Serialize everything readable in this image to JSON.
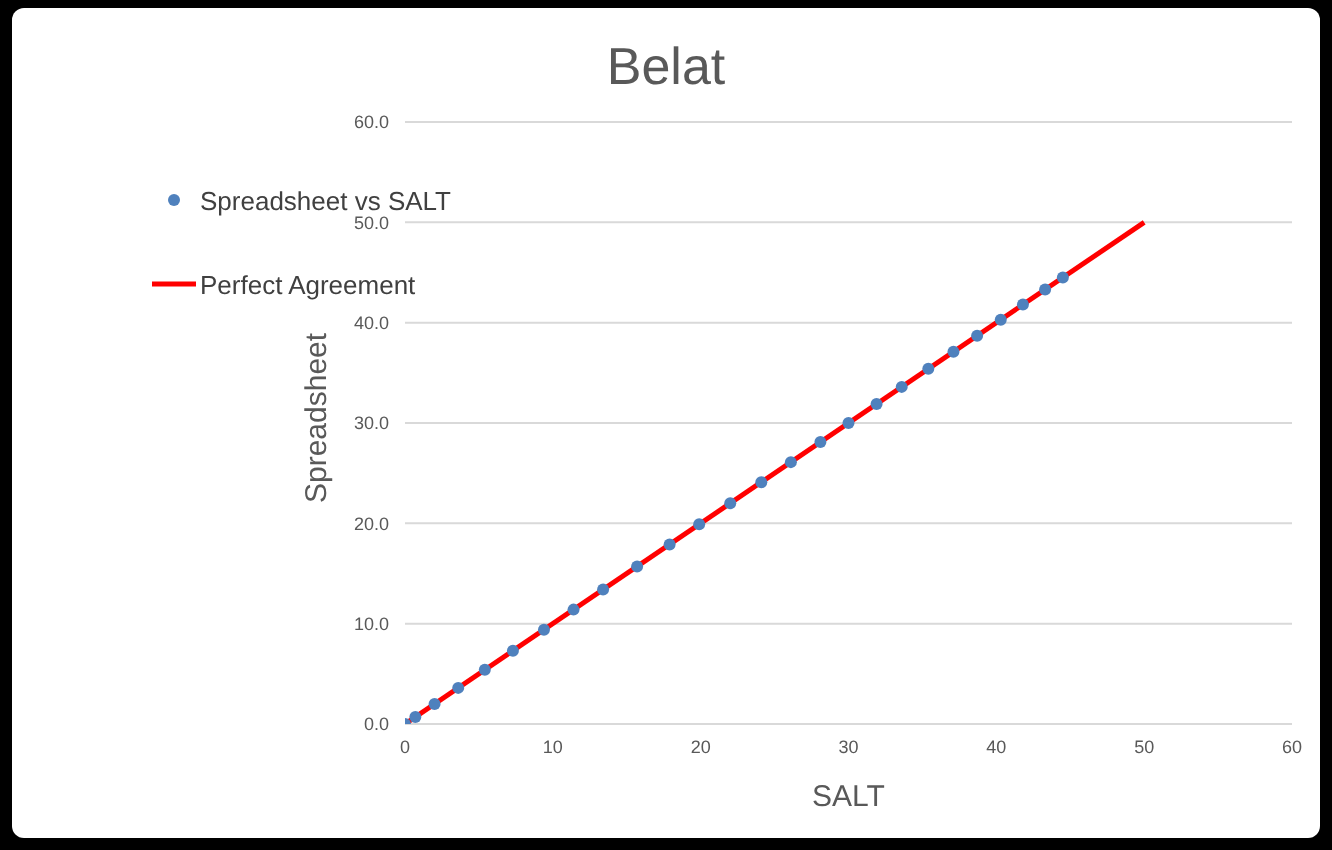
{
  "chart_data": {
    "type": "scatter",
    "title": "Belat",
    "xlabel": "SALT",
    "ylabel": "Spreadsheet",
    "xlim": [
      0,
      60
    ],
    "xticks": [
      0,
      10,
      20,
      30,
      40,
      50,
      60
    ],
    "ylim": [
      0,
      60
    ],
    "yticks": [
      {
        "value": 0,
        "label": "0.0"
      },
      {
        "value": 10,
        "label": "10.0"
      },
      {
        "value": 20,
        "label": "20.0"
      },
      {
        "value": 30,
        "label": "30.0"
      },
      {
        "value": 40,
        "label": "40.0"
      },
      {
        "value": 50,
        "label": "50.0"
      },
      {
        "value": 60,
        "label": "60.0"
      }
    ],
    "grid": "y",
    "legend": "top left",
    "series": [
      {
        "name": "Spreadsheet vs SALT",
        "color": "#4f81bd",
        "marker": "circle",
        "x": [
          0,
          0.7,
          2.0,
          3.6,
          5.4,
          7.3,
          9.4,
          11.4,
          13.4,
          15.7,
          17.9,
          19.9,
          22.0,
          24.1,
          26.1,
          28.1,
          30.0,
          31.9,
          33.6,
          35.4,
          37.1,
          38.7,
          40.3,
          41.8,
          43.3,
          44.5
        ],
        "values": [
          0,
          0.7,
          2.0,
          3.6,
          5.4,
          7.3,
          9.4,
          11.4,
          13.4,
          15.7,
          17.9,
          19.9,
          22.0,
          24.1,
          26.1,
          28.1,
          30.0,
          31.9,
          33.6,
          35.4,
          37.1,
          38.7,
          40.3,
          41.8,
          43.3,
          44.5
        ]
      },
      {
        "name": "Perfect Agreement",
        "type": "line",
        "color": "#ff0000",
        "marker": "none",
        "line_style": "solid",
        "x": [
          0,
          50
        ],
        "values": [
          0,
          50
        ]
      }
    ]
  }
}
